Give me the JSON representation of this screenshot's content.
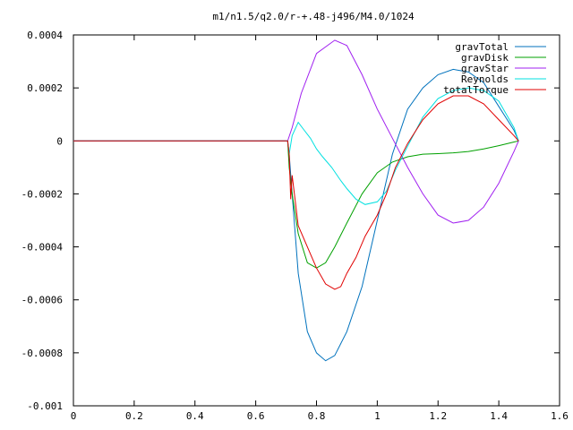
{
  "chart_data": {
    "type": "line",
    "title": "m1/n1.5/q2.0/r-+.48-j496/M4.0/1024",
    "xlabel": "",
    "ylabel": "",
    "xlim": [
      0,
      1.6
    ],
    "ylim": [
      -0.001,
      0.0004
    ],
    "grid": false,
    "legend_position": "top-right",
    "x_ticks": [
      "0",
      "0.2",
      "0.4",
      "0.6",
      "0.8",
      "1",
      "1.2",
      "1.4",
      "1.6"
    ],
    "y_ticks": [
      "0.0004",
      "0.0002",
      "0",
      "-0.0002",
      "-0.0004",
      "-0.0006",
      "-0.0008",
      "-0.001"
    ],
    "series": [
      {
        "name": "gravTotal",
        "color": "#0072bd",
        "x": [
          0,
          0.705,
          0.71,
          0.72,
          0.74,
          0.77,
          0.8,
          0.83,
          0.86,
          0.9,
          0.95,
          1.0,
          1.05,
          1.1,
          1.15,
          1.2,
          1.25,
          1.3,
          1.35,
          1.4,
          1.45,
          1.465
        ],
        "y": [
          0,
          0,
          -5e-05,
          -0.0002,
          -0.0005,
          -0.00072,
          -0.0008,
          -0.00083,
          -0.00081,
          -0.00072,
          -0.00055,
          -0.0003,
          -5e-05,
          0.00012,
          0.0002,
          0.00025,
          0.00027,
          0.00026,
          0.00022,
          0.00013,
          4e-05,
          0
        ]
      },
      {
        "name": "gravDisk",
        "color": "#00a000",
        "x": [
          0,
          0.705,
          0.71,
          0.72,
          0.74,
          0.77,
          0.8,
          0.83,
          0.86,
          0.9,
          0.95,
          1.0,
          1.05,
          1.1,
          1.15,
          1.2,
          1.25,
          1.3,
          1.35,
          1.4,
          1.45,
          1.465
        ],
        "y": [
          0,
          0,
          -0.0001,
          -0.0002,
          -0.00035,
          -0.00046,
          -0.00048,
          -0.00046,
          -0.0004,
          -0.00031,
          -0.0002,
          -0.00012,
          -8e-05,
          -6e-05,
          -5e-05,
          -4.8e-05,
          -4.5e-05,
          -4e-05,
          -3e-05,
          -1.8e-05,
          -4e-06,
          0
        ]
      },
      {
        "name": "gravStar",
        "color": "#a020f0",
        "x": [
          0,
          0.705,
          0.72,
          0.75,
          0.8,
          0.86,
          0.9,
          0.95,
          1.0,
          1.05,
          1.1,
          1.15,
          1.2,
          1.25,
          1.3,
          1.35,
          1.4,
          1.45,
          1.465
        ],
        "y": [
          0,
          0,
          5e-05,
          0.00018,
          0.00033,
          0.00038,
          0.00036,
          0.00025,
          0.00012,
          1e-05,
          -0.0001,
          -0.0002,
          -0.00028,
          -0.00031,
          -0.0003,
          -0.00025,
          -0.00016,
          -4e-05,
          0
        ]
      },
      {
        "name": "Reynolds",
        "color": "#00e0e0",
        "x": [
          0,
          0.705,
          0.71,
          0.72,
          0.74,
          0.76,
          0.78,
          0.8,
          0.82,
          0.85,
          0.88,
          0.9,
          0.93,
          0.96,
          1.0,
          1.03,
          1.06,
          1.1,
          1.15,
          1.2,
          1.25,
          1.3,
          1.35,
          1.4,
          1.45,
          1.465
        ],
        "y": [
          0,
          0,
          -5e-05,
          2e-05,
          7e-05,
          4e-05,
          1e-05,
          -3e-05,
          -6e-05,
          -0.0001,
          -0.00015,
          -0.00018,
          -0.00022,
          -0.00024,
          -0.00023,
          -0.00019,
          -0.00011,
          -2e-05,
          9e-05,
          0.00016,
          0.00019,
          0.0002,
          0.00019,
          0.00015,
          5e-05,
          0
        ]
      },
      {
        "name": "totalTorque",
        "color": "#e00000",
        "x": [
          0,
          0.705,
          0.71,
          0.715,
          0.72,
          0.74,
          0.77,
          0.8,
          0.83,
          0.86,
          0.88,
          0.9,
          0.93,
          0.96,
          1.0,
          1.03,
          1.06,
          1.1,
          1.15,
          1.2,
          1.25,
          1.3,
          1.35,
          1.4,
          1.45,
          1.465
        ],
        "y": [
          0,
          0,
          -5e-05,
          -0.00022,
          -0.00013,
          -0.00032,
          -0.0004,
          -0.00048,
          -0.00054,
          -0.00056,
          -0.00055,
          -0.0005,
          -0.00044,
          -0.00036,
          -0.00028,
          -0.0002,
          -0.0001,
          -1e-05,
          8e-05,
          0.00014,
          0.00017,
          0.00017,
          0.00014,
          8e-05,
          2e-05,
          0
        ]
      }
    ]
  }
}
